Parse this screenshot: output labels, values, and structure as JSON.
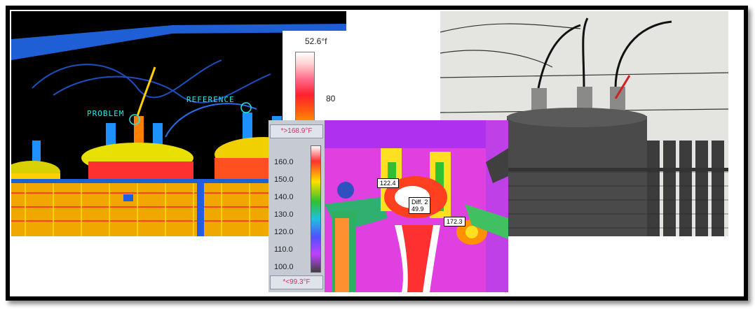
{
  "panels": {
    "thermal_overview": {
      "label_problem": "PROBLEM",
      "label_reference": "REFERENCE",
      "scale_max": "52.6°f",
      "scale_tick": "80"
    },
    "thermal_closeup": {
      "legend_top": "*>168.9°F",
      "legend_bottom": "*<99.3°F",
      "ticks": [
        "160.0",
        "150.0",
        "140.0",
        "130.0",
        "120.0",
        "110.0",
        "100.0"
      ],
      "tag_1": "122.4",
      "tag_diff_label": "Diff. 2",
      "tag_diff_value": "49.9",
      "tag_3": "172.3"
    }
  },
  "colors": {
    "frame": "#000000",
    "label_cyan": "#29e3e6",
    "legend_text": "#d0306a"
  }
}
